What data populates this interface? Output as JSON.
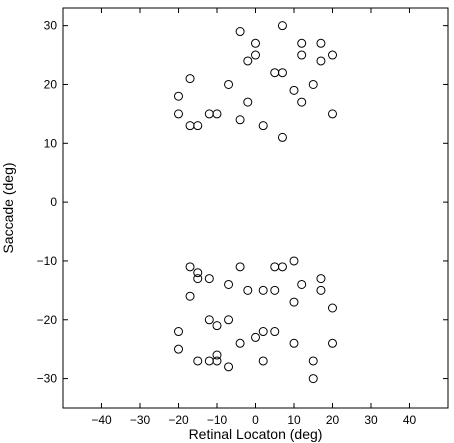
{
  "chart_data": {
    "type": "scatter",
    "xlabel": "Retinal Locaton (deg)",
    "ylabel": "Saccade (deg)",
    "xlim": [
      -50,
      50
    ],
    "ylim": [
      -35,
      33
    ],
    "xticks": [
      -40,
      -30,
      -20,
      -10,
      0,
      10,
      20,
      30,
      40
    ],
    "yticks": [
      -30,
      -20,
      -10,
      0,
      10,
      20,
      30
    ],
    "grid": false,
    "marker": "open-circle",
    "marker_color": "#000000",
    "series": [
      {
        "points": [
          [
            -4,
            29
          ],
          [
            7,
            30
          ],
          [
            0,
            27
          ],
          [
            12,
            27
          ],
          [
            17,
            27
          ],
          [
            0,
            25
          ],
          [
            12,
            25
          ],
          [
            20,
            25
          ],
          [
            -2,
            24
          ],
          [
            17,
            24
          ],
          [
            5,
            22
          ],
          [
            7,
            22
          ],
          [
            -17,
            21
          ],
          [
            -7,
            20
          ],
          [
            15,
            20
          ],
          [
            -20,
            18
          ],
          [
            10,
            19
          ],
          [
            -2,
            17
          ],
          [
            12,
            17
          ],
          [
            -20,
            15
          ],
          [
            -12,
            15
          ],
          [
            -10,
            15
          ],
          [
            20,
            15
          ],
          [
            -17,
            13
          ],
          [
            -15,
            13
          ],
          [
            -4,
            14
          ],
          [
            2,
            13
          ],
          [
            7,
            11
          ],
          [
            10,
            -10
          ],
          [
            -17,
            -11
          ],
          [
            -4,
            -11
          ],
          [
            5,
            -11
          ],
          [
            7,
            -11
          ],
          [
            -15,
            -12
          ],
          [
            -15,
            -13
          ],
          [
            -12,
            -13
          ],
          [
            17,
            -13
          ],
          [
            -7,
            -14
          ],
          [
            12,
            -14
          ],
          [
            -17,
            -16
          ],
          [
            -2,
            -15
          ],
          [
            2,
            -15
          ],
          [
            5,
            -15
          ],
          [
            17,
            -15
          ],
          [
            10,
            -17
          ],
          [
            20,
            -18
          ],
          [
            -12,
            -20
          ],
          [
            -10,
            -21
          ],
          [
            -7,
            -20
          ],
          [
            -20,
            -22
          ],
          [
            2,
            -22
          ],
          [
            5,
            -22
          ],
          [
            0,
            -23
          ],
          [
            -4,
            -24
          ],
          [
            10,
            -24
          ],
          [
            20,
            -24
          ],
          [
            -20,
            -25
          ],
          [
            -10,
            -26
          ],
          [
            -10,
            -27
          ],
          [
            -15,
            -27
          ],
          [
            -12,
            -27
          ],
          [
            -7,
            -28
          ],
          [
            2,
            -27
          ],
          [
            15,
            -27
          ],
          [
            15,
            -30
          ]
        ]
      }
    ]
  }
}
